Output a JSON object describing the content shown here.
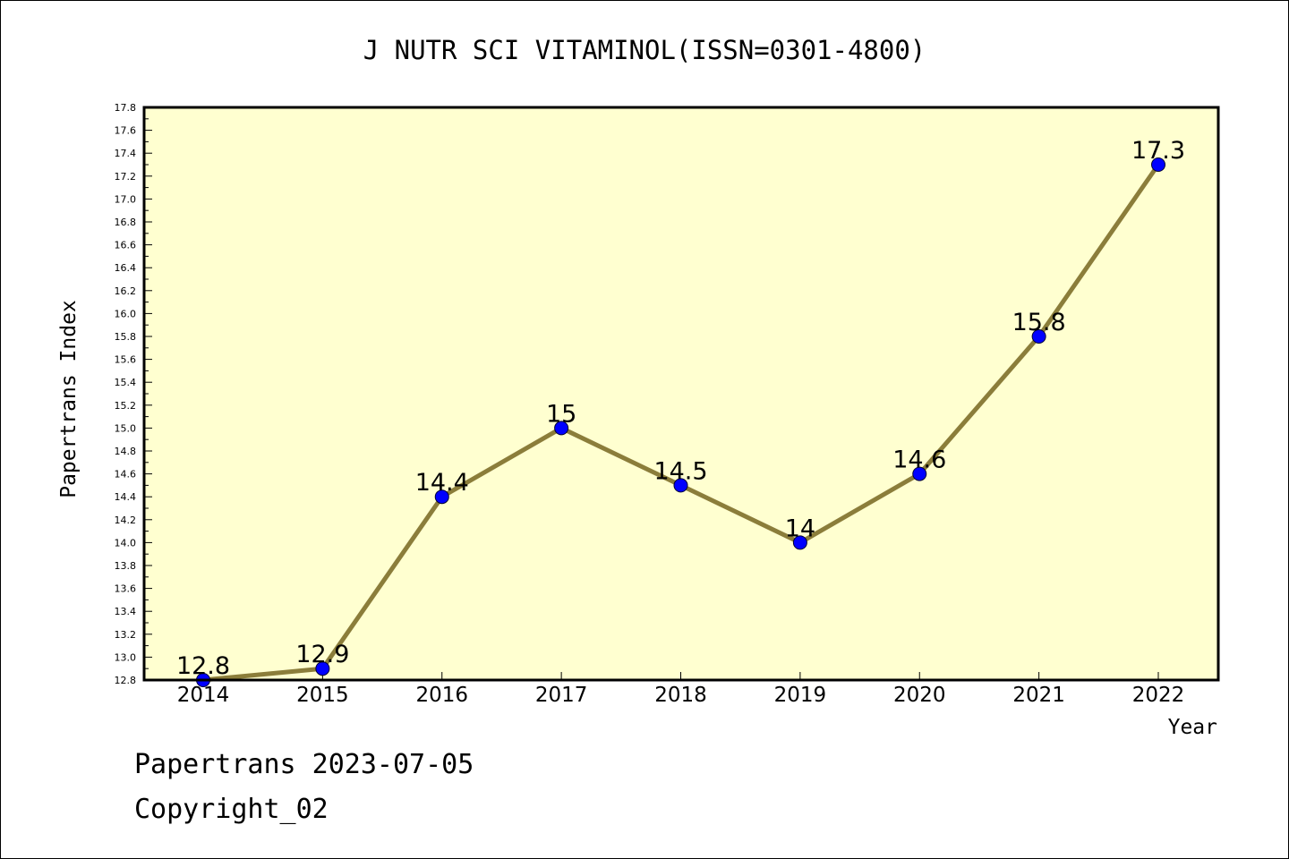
{
  "chart_data": {
    "type": "line",
    "title": "J NUTR SCI VITAMINOL(ISSN=0301-4800)",
    "xlabel": "Year",
    "ylabel": "Papertrans Index",
    "categories": [
      "2014",
      "2015",
      "2016",
      "2017",
      "2018",
      "2019",
      "2020",
      "2021",
      "2022"
    ],
    "series": [
      {
        "values": [
          12.8,
          12.9,
          14.4,
          15.0,
          14.5,
          14.0,
          14.6,
          15.8,
          17.3
        ]
      }
    ],
    "data_labels": [
      "12.8",
      "12.9",
      "14.4",
      "15",
      "14.5",
      "14",
      "14.6",
      "15.8",
      "17.3"
    ],
    "ylim": [
      12.8,
      17.8
    ],
    "y_major_step": 0.2,
    "y_minor_step": 0.1,
    "y_tick_decimals": 1,
    "grid": false,
    "colors": {
      "plot_background": "#ffffd0",
      "line": "#8b7d3a",
      "marker": "#0000ff"
    }
  },
  "footer": {
    "line1": "Papertrans 2023-07-05",
    "line2": "Copyright_02"
  }
}
